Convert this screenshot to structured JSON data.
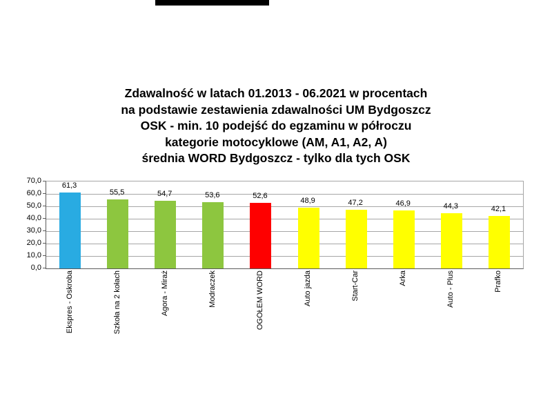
{
  "redaction": {
    "present": true,
    "color": "#000000"
  },
  "title": {
    "lines": [
      "Zdawalność w latach 01.2013  - 06.2021  w procentach",
      "na podstawie zestawienia zdawalności UM Bydgoszcz",
      "OSK - min. 10 podejść do egzaminu w półroczu",
      "kategorie motocyklowe (AM, A1, A2, A)",
      "średnia WORD Bydgoszcz - tylko dla tych OSK"
    ]
  },
  "chart_data": {
    "type": "bar",
    "title": "Zdawalność w latach 01.2013 - 06.2021 w procentach / na podstawie zestawienia zdawalności UM Bydgoszcz / OSK - min. 10 podejść do egzaminu w półroczu / kategorie motocyklowe (AM, A1, A2, A) / średnia WORD Bydgoszcz - tylko dla tych OSK",
    "xlabel": "",
    "ylabel": "",
    "categories": [
      "Ekspres - Oskroba",
      "Szkoła na 2 kołach",
      "Agora - Miraż",
      "Modraczek",
      "OGÓŁEM WORD",
      "Auto jazda",
      "Start-Car",
      "Arka",
      "Auto - Plus",
      "Prafko"
    ],
    "values": [
      61.3,
      55.5,
      54.7,
      53.6,
      52.6,
      48.9,
      47.2,
      46.9,
      44.3,
      42.1
    ],
    "value_labels": [
      "61,3",
      "55,5",
      "54,7",
      "53,6",
      "52,6",
      "48,9",
      "47,2",
      "46,9",
      "44,3",
      "42,1"
    ],
    "bar_colors": [
      "#29ABE2",
      "#8DC63F",
      "#8DC63F",
      "#8DC63F",
      "#FE0000",
      "#FFFF00",
      "#FFFF00",
      "#FFFF00",
      "#FFFF00",
      "#FFFF00"
    ],
    "ylim": [
      0,
      70
    ],
    "ytick_step": 10,
    "yticks": [
      "0,0",
      "10,0",
      "20,0",
      "30,0",
      "40,0",
      "50,0",
      "60,0",
      "70,0"
    ],
    "grid": true,
    "legend": false,
    "gridline_color": "#A6A6A6",
    "axis_color": "#595959",
    "label_color": "#000000"
  }
}
